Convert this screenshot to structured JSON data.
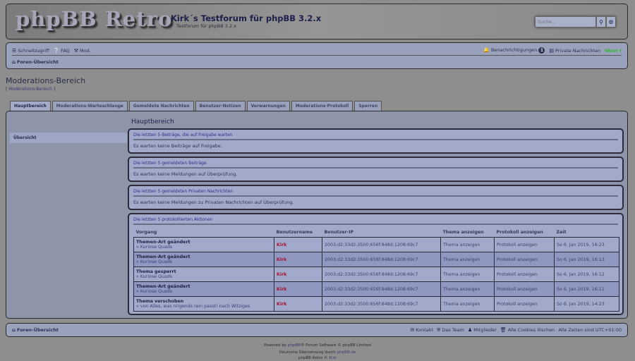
{
  "header": {
    "logo": "phpBB Retro",
    "title": "Kirk´s Testforum für phpBB 3.2.x",
    "description": "Testforum für phpBB 3.2.x",
    "search_placeholder": "Suche..."
  },
  "nav": {
    "quick": "Schnellzugriff",
    "faq": "FAQ",
    "mod": "Mod.",
    "notifications": "Benachrichtigungen",
    "notif_count": "1",
    "pm": "Private Nachrichten",
    "user": "West",
    "index": "Foren-Übersicht"
  },
  "page": {
    "title": "Moderations-Bereich",
    "crumb": "Moderations-Bereich"
  },
  "tabs": [
    "Hauptbereich",
    "Moderations-Warteschlange",
    "Gemeldete Nachrichten",
    "Benutzer-Notizen",
    "Verwarnungen",
    "Moderations-Protokoll",
    "Sperren"
  ],
  "sidebar": {
    "item": "Übersicht"
  },
  "content": {
    "heading": "Hauptbereich",
    "boxes": [
      {
        "title": "Die letzten 5 Beiträge, die auf Freigabe warten",
        "text": "Es warten keine Beiträge auf Freigabe."
      },
      {
        "title": "Die letzten 5 gemeldeten Beiträge",
        "text": "Es warten keine Meldungen auf Überprüfung."
      },
      {
        "title": "Die letzten 5 gemeldeten Privaten Nachrichten",
        "text": "Es warten keine Meldungen zu Privaten Nachrichten auf Überprüfung."
      }
    ],
    "log": {
      "title": "Die letzten 5 protokollierten Aktionen",
      "columns": [
        "Vorgang",
        "Benutzername",
        "Benutzer-IP",
        "Thema anzeigen",
        "Protokoll anzeigen",
        "Zeit"
      ],
      "rows": [
        {
          "action": "Themen-Art geändert",
          "detail": "» Kuriose Quads",
          "user": "Kirk",
          "ip": "2003:d2:33d2:3500:656f:848d:1208:69c7",
          "topic": "Thema anzeigen",
          "log": "Protokoll anzeigen",
          "time": "So 6. Jan 2019, 16:23"
        },
        {
          "action": "Themen-Art geändert",
          "detail": "» Kuriose Quads",
          "user": "Kirk",
          "ip": "2003:d2:33d2:3500:656f:848d:1208:69c7",
          "topic": "Thema anzeigen",
          "log": "Protokoll anzeigen",
          "time": "So 6. Jan 2019, 16:13"
        },
        {
          "action": "Thema gesperrt",
          "detail": "» Kuriose Quads",
          "user": "Kirk",
          "ip": "2003:d2:33d2:3500:656f:848d:1208:69c7",
          "topic": "Thema anzeigen",
          "log": "Protokoll anzeigen",
          "time": "So 6. Jan 2019, 16:12"
        },
        {
          "action": "Themen-Art geändert",
          "detail": "» Kuriose Quads",
          "user": "Kirk",
          "ip": "2003:d2:33d2:3500:656f:848d:1208:69c7",
          "topic": "Thema anzeigen",
          "log": "Protokoll anzeigen",
          "time": "So 6. Jan 2019, 16:11"
        },
        {
          "action": "Thema verschoben",
          "detail": "» von Alles, was nirgends rein passt! nach Witziges",
          "user": "Kirk",
          "ip": "2003:d2:33d2:3500:656f:848d:1208:69c7",
          "topic": "Thema anzeigen",
          "log": "Protokoll anzeigen",
          "time": "So 6. Jan 2019, 14:23"
        }
      ]
    }
  },
  "footer": {
    "index": "Foren-Übersicht",
    "contact": "Kontakt",
    "team": "Das Team",
    "members": "Mitglieder",
    "cookies": "Alle Cookies löschen",
    "timezone": "Alle Zeiten sind UTC+01:00",
    "powered_pre": "Powered by ",
    "powered_link": "phpBB",
    "powered_post": "® Forum Software © phpBB Limited",
    "trans_pre": "Deutsche Übersetzung durch ",
    "trans_link": "phpBB.de",
    "style_pre": "phpBB Retro © ",
    "style_link": "Kirk"
  },
  "colors": {
    "accent": "#2a2e8a",
    "username": "#a8102a",
    "online_user": "#2fb82f"
  }
}
